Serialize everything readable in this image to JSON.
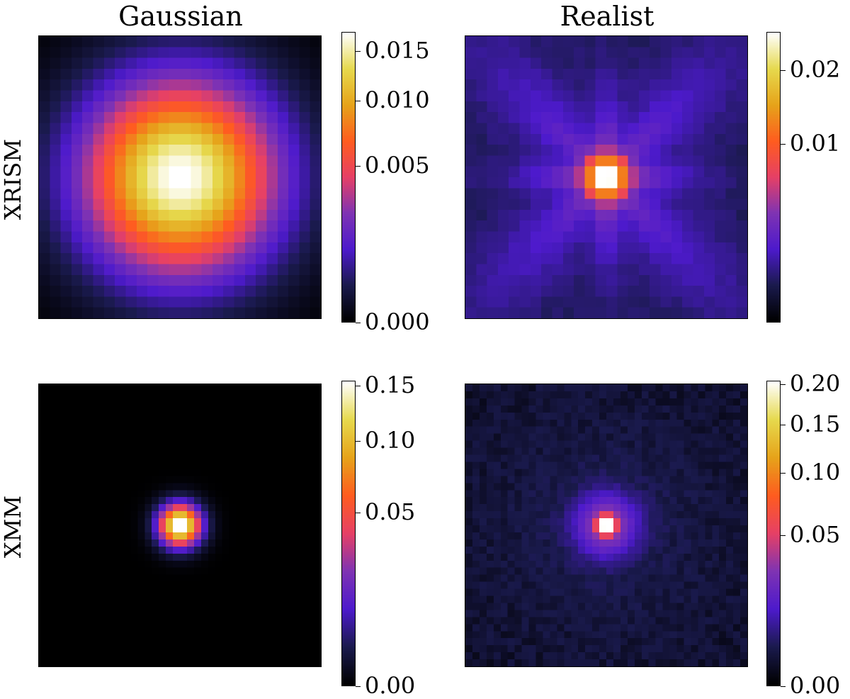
{
  "columns": [
    "Gaussian",
    "Realist"
  ],
  "rows": [
    "XRISM",
    "XMM"
  ],
  "chart_data": [
    {
      "type": "heatmap",
      "row": "XRISM",
      "column": "Gaussian",
      "grid": 26,
      "psf": "gaussian",
      "sigma": 4.6,
      "vmin": 0.0,
      "vmax": 0.0172,
      "scale": "sqrt",
      "colormap": "CMRmap",
      "colorbar_ticks": [
        0.0,
        0.005,
        0.01,
        0.015
      ],
      "colorbar_ticklabels": [
        "0.000",
        "0.005",
        "0.010",
        "0.015"
      ]
    },
    {
      "type": "heatmap",
      "row": "XRISM",
      "column": "Realist",
      "grid": 26,
      "psf": "realistic",
      "vmin": 0.0,
      "vmax": 0.0265,
      "scale": "sqrt",
      "colormap": "CMRmap",
      "colorbar_ticks": [
        0.01,
        0.02
      ],
      "colorbar_ticklabels": [
        "0.01",
        "0.02"
      ]
    },
    {
      "type": "heatmap",
      "row": "XMM",
      "column": "Gaussian",
      "grid": 40,
      "psf": "gaussian",
      "sigma": 1.5,
      "vmin": 0.0,
      "vmax": 0.155,
      "scale": "sqrt",
      "colormap": "CMRmap",
      "colorbar_ticks": [
        0.0,
        0.05,
        0.1,
        0.15
      ],
      "colorbar_ticklabels": [
        "0.00",
        "0.05",
        "0.10",
        "0.15"
      ]
    },
    {
      "type": "heatmap",
      "row": "XMM",
      "column": "Realist",
      "grid": 40,
      "psf": "realistic-narrow",
      "vmin": 0.0,
      "vmax": 0.205,
      "scale": "sqrt",
      "colormap": "CMRmap",
      "colorbar_ticks": [
        0.0,
        0.05,
        0.1,
        0.15,
        0.2
      ],
      "colorbar_ticklabels": [
        "0.00",
        "0.05",
        "0.10",
        "0.15",
        "0.20"
      ]
    }
  ],
  "colormap_stops": [
    "#000000",
    "#1a1a4d",
    "#4d1acc",
    "#7f33b3",
    "#e64066",
    "#ff5c1f",
    "#e6a31a",
    "#e6d94d",
    "#ffffff"
  ]
}
